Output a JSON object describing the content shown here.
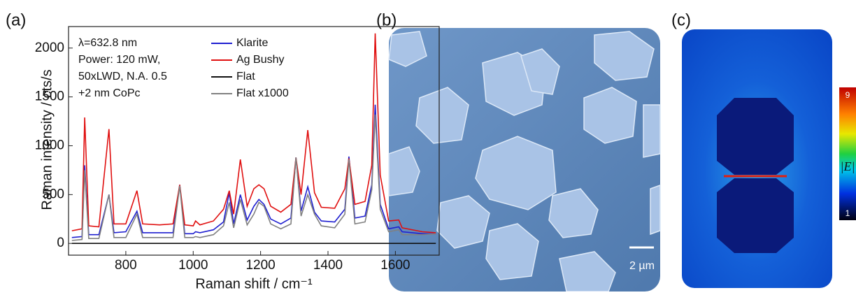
{
  "chart_data": {
    "type": "line",
    "xlabel": "Raman shift / cm⁻¹",
    "ylabel": "Raman intensity / cts/s",
    "annotations": [
      "λ=632.8 nm",
      "Power: 120 mW,",
      "50xLWD, N.A. 0.5",
      "+2 nm CoPc"
    ],
    "xlim": [
      630,
      1730
    ],
    "ylim": [
      -120,
      2220
    ],
    "xticks": [
      800,
      1000,
      1200,
      1400,
      1600
    ],
    "yticks": [
      0,
      500,
      1000,
      1500,
      2000
    ],
    "grid": false,
    "legend": "upper right",
    "x": [
      640,
      670,
      678,
      690,
      720,
      750,
      765,
      800,
      833,
      850,
      900,
      940,
      960,
      975,
      1000,
      1007,
      1020,
      1060,
      1090,
      1107,
      1120,
      1140,
      1160,
      1180,
      1195,
      1210,
      1230,
      1260,
      1290,
      1305,
      1320,
      1340,
      1360,
      1380,
      1420,
      1450,
      1462,
      1480,
      1510,
      1530,
      1540,
      1555,
      1580,
      1610,
      1620,
      1680,
      1720
    ],
    "series": [
      {
        "name": "Klarite",
        "color": "#1f1fd0",
        "values": [
          60,
          70,
          800,
          90,
          90,
          500,
          110,
          120,
          330,
          110,
          110,
          110,
          600,
          100,
          100,
          120,
          110,
          140,
          220,
          520,
          200,
          500,
          240,
          380,
          450,
          400,
          250,
          200,
          260,
          880,
          330,
          580,
          320,
          230,
          220,
          350,
          890,
          260,
          280,
          600,
          1420,
          400,
          150,
          170,
          120,
          100,
          100
        ]
      },
      {
        "name": "Ag Bushy",
        "color": "#e01010",
        "values": [
          130,
          150,
          1290,
          180,
          170,
          1170,
          200,
          200,
          540,
          200,
          190,
          200,
          600,
          190,
          180,
          230,
          190,
          230,
          350,
          540,
          300,
          860,
          380,
          560,
          600,
          560,
          380,
          320,
          400,
          880,
          500,
          1160,
          520,
          370,
          360,
          560,
          870,
          400,
          430,
          800,
          2150,
          700,
          230,
          240,
          160,
          120,
          110
        ]
      },
      {
        "name": "Flat",
        "color": "#111111",
        "values": [
          0,
          0,
          0,
          0,
          0,
          0,
          0,
          0,
          0,
          0,
          0,
          0,
          0,
          0,
          0,
          0,
          0,
          0,
          0,
          0,
          0,
          0,
          0,
          0,
          0,
          0,
          0,
          0,
          0,
          0,
          0,
          0,
          0,
          0,
          0,
          0,
          0,
          0,
          0,
          0,
          0,
          0,
          0,
          0,
          0,
          0,
          0
        ]
      },
      {
        "name": "Flat x1000",
        "color": "#808080",
        "values": [
          30,
          40,
          750,
          50,
          50,
          500,
          60,
          60,
          300,
          60,
          60,
          60,
          590,
          60,
          60,
          70,
          60,
          90,
          180,
          420,
          160,
          450,
          190,
          300,
          420,
          380,
          200,
          150,
          200,
          880,
          280,
          500,
          300,
          180,
          160,
          300,
          860,
          200,
          220,
          550,
          1320,
          350,
          120,
          140,
          90,
          90,
          100
        ]
      }
    ]
  },
  "panel_labels": [
    "(a)",
    "(b)",
    "(c)"
  ],
  "sem_image": {
    "scale_bar_label": "2 µm"
  },
  "field_map": {
    "colorbar_max_label": "9",
    "colorbar_min_label": "1",
    "colorbar_title": "|E|"
  }
}
